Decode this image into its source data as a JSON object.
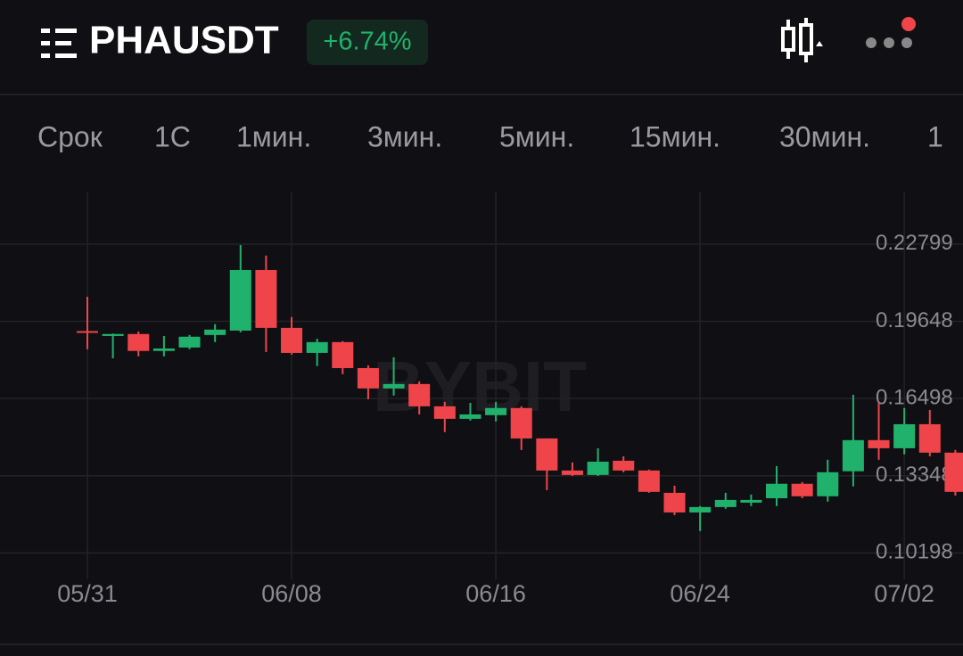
{
  "header": {
    "symbol": "PHAUSDT",
    "change": "+6.74%"
  },
  "tabs": [
    "Срок",
    "1С",
    "1мин.",
    "3мин.",
    "5мин.",
    "15мин.",
    "30мин.",
    "1"
  ],
  "watermark": "BYBIT",
  "chart_data": {
    "type": "candlestick",
    "categories": [
      "05/31",
      null,
      null,
      null,
      null,
      null,
      null,
      null,
      "06/08",
      null,
      null,
      null,
      null,
      null,
      null,
      null,
      "06/16",
      null,
      null,
      null,
      null,
      null,
      null,
      null,
      "06/24",
      null,
      null,
      null,
      null,
      null,
      null,
      null,
      "07/02",
      null,
      null
    ],
    "open": [
      0.1925,
      0.1905,
      0.1913,
      0.1844,
      0.1858,
      0.1909,
      0.1927,
      0.2174,
      0.1938,
      0.1836,
      0.188,
      0.1774,
      0.1691,
      0.1709,
      0.1618,
      0.1567,
      0.1582,
      0.1611,
      0.1487,
      0.1356,
      0.1338,
      0.1396,
      0.1356,
      0.1265,
      0.1185,
      0.1207,
      0.1225,
      0.1243,
      0.1302,
      0.1251,
      0.1353,
      0.148,
      0.1447,
      0.1545,
      0.1429
    ],
    "close": [
      0.1921,
      0.1913,
      0.1844,
      0.1854,
      0.1902,
      0.1931,
      0.2174,
      0.1938,
      0.1836,
      0.188,
      0.1774,
      0.1691,
      0.1709,
      0.1618,
      0.1567,
      0.1585,
      0.1611,
      0.1487,
      0.1356,
      0.1338,
      0.1392,
      0.1356,
      0.1269,
      0.1185,
      0.1207,
      0.1236,
      0.1236,
      0.1302,
      0.1251,
      0.1349,
      0.148,
      0.1447,
      0.1545,
      0.1429,
      0.1269
    ],
    "high": [
      0.2065,
      0.1915,
      0.1923,
      0.1905,
      0.1909,
      0.1953,
      0.2276,
      0.2233,
      0.1982,
      0.1894,
      0.1884,
      0.1785,
      0.1818,
      0.172,
      0.1636,
      0.1632,
      0.1636,
      0.1618,
      0.1487,
      0.1389,
      0.1447,
      0.1414,
      0.136,
      0.1294,
      0.1211,
      0.1265,
      0.1258,
      0.1374,
      0.1309,
      0.14,
      0.1665,
      0.1633,
      0.1611,
      0.1603,
      0.144
    ],
    "low": [
      0.1851,
      0.1814,
      0.1822,
      0.1822,
      0.1851,
      0.188,
      0.192,
      0.184,
      0.1829,
      0.1782,
      0.1749,
      0.1647,
      0.1662,
      0.1585,
      0.1513,
      0.156,
      0.1556,
      0.144,
      0.1276,
      0.1334,
      0.1334,
      0.1349,
      0.1265,
      0.1174,
      0.1109,
      0.12,
      0.1211,
      0.1211,
      0.1243,
      0.1229,
      0.1291,
      0.14,
      0.1422,
      0.1414,
      0.1254
    ],
    "up_color": "#20b26c",
    "down_color": "#ef454a",
    "ylim": [
      0.0912,
      0.2494
    ],
    "yticks": [
      0.10198,
      0.13348,
      0.16498,
      0.19648,
      0.22799
    ],
    "grid": true
  }
}
